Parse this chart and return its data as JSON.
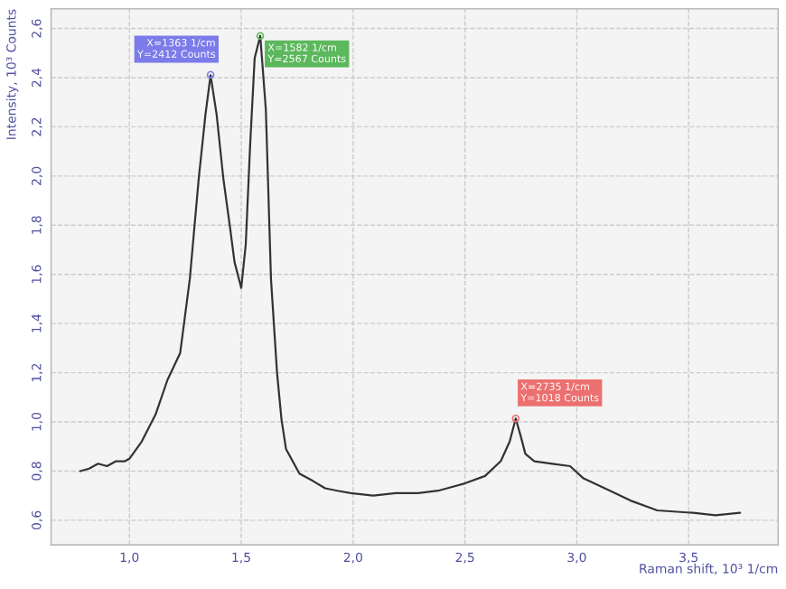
{
  "chart_data": {
    "type": "line",
    "xlabel": "Raman shift, 10³ 1/cm",
    "ylabel": "Intensity, 10³ Counts",
    "x": [
      0.78,
      0.82,
      0.86,
      0.9,
      0.94,
      0.98,
      1.0,
      1.055,
      1.117,
      1.17,
      1.227,
      1.27,
      1.31,
      1.34,
      1.363,
      1.39,
      1.42,
      1.45,
      1.47,
      1.5,
      1.52,
      1.54,
      1.56,
      1.585,
      1.61,
      1.633,
      1.66,
      1.68,
      1.7,
      1.76,
      1.82,
      1.875,
      1.93,
      1.99,
      2.09,
      2.19,
      2.29,
      2.38,
      2.5,
      2.59,
      2.66,
      2.7,
      2.727,
      2.75,
      2.77,
      2.81,
      2.89,
      2.97,
      3.03,
      3.125,
      3.24,
      3.36,
      3.52,
      3.62,
      3.73
    ],
    "series": [
      {
        "color": "#333333",
        "values": [
          0.8,
          0.81,
          0.83,
          0.82,
          0.84,
          0.84,
          0.85,
          0.92,
          1.03,
          1.17,
          1.28,
          1.58,
          1.99,
          2.25,
          2.41,
          2.25,
          1.99,
          1.79,
          1.65,
          1.545,
          1.72,
          2.13,
          2.48,
          2.57,
          2.27,
          1.58,
          1.2,
          1.01,
          0.89,
          0.79,
          0.76,
          0.73,
          0.72,
          0.71,
          0.7,
          0.71,
          0.71,
          0.72,
          0.75,
          0.78,
          0.84,
          0.92,
          1.014,
          0.94,
          0.87,
          0.84,
          0.83,
          0.82,
          0.77,
          0.73,
          0.68,
          0.64,
          0.63,
          0.62,
          0.63
        ]
      }
    ],
    "xlim": [
      0.65,
      3.9
    ],
    "ylim": [
      0.5,
      2.68
    ],
    "xticks": [
      {
        "value": 1.0,
        "label": "1,0"
      },
      {
        "value": 1.5,
        "label": "1,5"
      },
      {
        "value": 2.0,
        "label": "2,0"
      },
      {
        "value": 2.5,
        "label": "2,5"
      },
      {
        "value": 3.0,
        "label": "3,0"
      },
      {
        "value": 3.5,
        "label": "3,5"
      }
    ],
    "yticks": [
      {
        "value": 0.6,
        "label": "0,6"
      },
      {
        "value": 0.8,
        "label": "0,8"
      },
      {
        "value": 1.0,
        "label": "1,0"
      },
      {
        "value": 1.2,
        "label": "1,2"
      },
      {
        "value": 1.4,
        "label": "1,4"
      },
      {
        "value": 1.6,
        "label": "1,6"
      },
      {
        "value": 1.8,
        "label": "1,8"
      },
      {
        "value": 2.0,
        "label": "2,0"
      },
      {
        "value": 2.2,
        "label": "2,2"
      },
      {
        "value": 2.4,
        "label": "2,4"
      },
      {
        "value": 2.6,
        "label": "2,6"
      }
    ],
    "annotations": [
      {
        "text": "X=1363 1/cm\nY=2412 Counts",
        "x": 1.363,
        "y": 2.412
      },
      {
        "text": "X=1582 1/cm\nY=2567 Counts",
        "x": 1.585,
        "y": 2.57
      },
      {
        "text": "X=2735 1/cm\nY=1018 Counts",
        "x": 2.727,
        "y": 1.014
      }
    ],
    "grid": true,
    "marker": "none",
    "line_style": "solid",
    "legend": false
  }
}
